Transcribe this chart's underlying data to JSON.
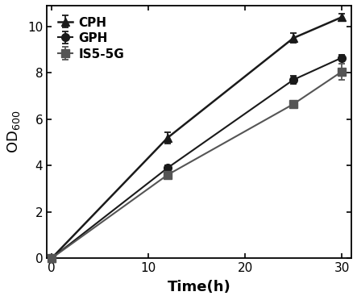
{
  "series": [
    {
      "label": "CPH",
      "color": "#1a1a1a",
      "marker": "^",
      "markersize": 7,
      "linewidth": 1.8,
      "x": [
        0,
        12,
        25,
        30
      ],
      "y": [
        0.0,
        5.2,
        9.5,
        10.4
      ],
      "yerr": [
        0.0,
        0.25,
        0.2,
        0.15
      ]
    },
    {
      "label": "GPH",
      "color": "#1a1a1a",
      "marker": "o",
      "markersize": 7,
      "linewidth": 1.5,
      "x": [
        0,
        12,
        25,
        30
      ],
      "y": [
        0.0,
        3.9,
        7.7,
        8.65
      ],
      "yerr": [
        0.0,
        0.12,
        0.18,
        0.12
      ]
    },
    {
      "label": "IS5-5G",
      "color": "#555555",
      "marker": "s",
      "markersize": 7,
      "linewidth": 1.5,
      "x": [
        0,
        12,
        25,
        30
      ],
      "y": [
        0.0,
        3.6,
        6.65,
        8.05
      ],
      "yerr": [
        0.0,
        0.1,
        0.12,
        0.35
      ]
    }
  ],
  "xlabel": "Time(h)",
  "ylabel_main": "OD",
  "ylabel_sub": "600",
  "xlim": [
    -0.5,
    31
  ],
  "ylim": [
    0,
    10.9
  ],
  "xticks": [
    0,
    10,
    20,
    30
  ],
  "yticks": [
    0,
    2,
    4,
    6,
    8,
    10
  ],
  "figsize": [
    4.43,
    3.72
  ],
  "dpi": 100,
  "background_color": "#ffffff",
  "legend_loc": "upper left",
  "tick_fontsize": 11,
  "label_fontsize": 13,
  "legend_fontsize": 11
}
